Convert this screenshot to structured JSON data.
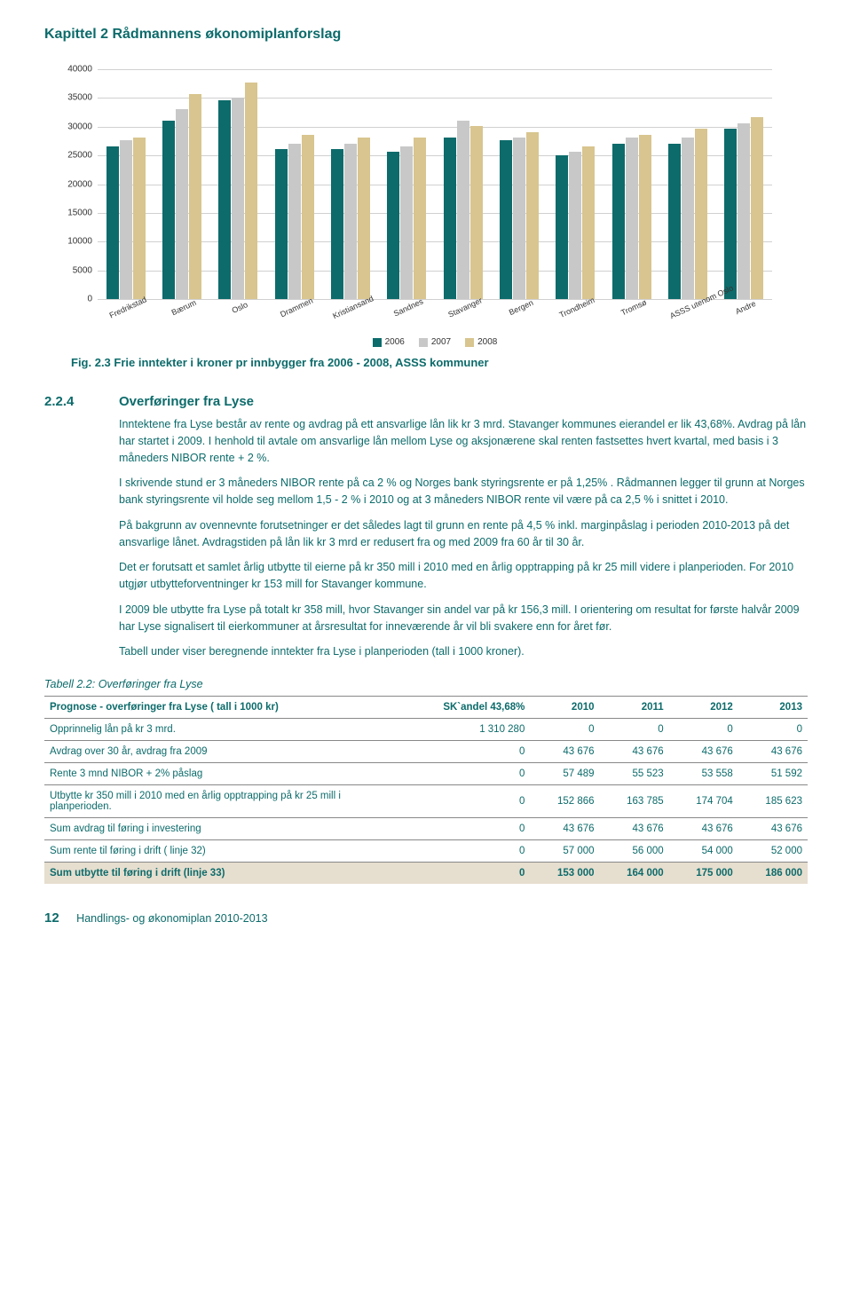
{
  "chapter_title": "Kapittel 2 Rådmannens økonomiplanforslag",
  "chart": {
    "type": "bar",
    "ylim": [
      0,
      40000
    ],
    "ytick_step": 5000,
    "yticks": [
      0,
      5000,
      10000,
      15000,
      20000,
      25000,
      30000,
      35000,
      40000
    ],
    "categories": [
      "Fredrikstad",
      "Bærum",
      "Oslo",
      "Drammen",
      "Kristiansand",
      "Sandnes",
      "Stavanger",
      "Bergen",
      "Trondheim",
      "Tromsø",
      "ASSS utenom Oslo",
      "Andre"
    ],
    "series": [
      {
        "name": "2006",
        "color": "#0d6b6b",
        "values": [
          26500,
          31000,
          34500,
          26000,
          26000,
          25500,
          28000,
          27500,
          25000,
          27000,
          27000,
          29500
        ]
      },
      {
        "name": "2007",
        "color": "#c8c8c8",
        "values": [
          27500,
          33000,
          35000,
          27000,
          27000,
          26500,
          31000,
          28000,
          25500,
          28000,
          28000,
          30500
        ]
      },
      {
        "name": "2008",
        "color": "#d8c58f",
        "values": [
          28000,
          35500,
          37500,
          28500,
          28000,
          28000,
          30000,
          29000,
          26500,
          28500,
          29500,
          31500
        ]
      }
    ],
    "grid_color": "#d0d0d0",
    "axis_font_size": 10
  },
  "fig_caption": "Fig. 2.3 Frie inntekter i kroner pr innbygger fra 2006 - 2008, ASSS kommuner",
  "section": {
    "number": "2.2.4",
    "title": "Overføringer fra Lyse",
    "paragraphs": [
      "Inntektene fra Lyse består av rente og avdrag på ett ansvarlige lån lik kr 3 mrd. Stavanger kommunes eierandel er lik 43,68%. Avdrag på lån har startet i 2009. I henhold til avtale om ansvarlige lån mellom Lyse og aksjonærene skal renten fastsettes hvert kvartal, med basis i 3 måneders NIBOR rente + 2 %.",
      "I skrivende stund er 3 måneders NIBOR rente på ca 2 % og Norges bank styringsrente er på 1,25% . Rådmannen legger til grunn at Norges bank styringsrente vil holde seg mellom 1,5 - 2 % i 2010 og at 3 måneders NIBOR rente vil være på ca 2,5 % i snittet i 2010.",
      "På bakgrunn av ovennevnte forutsetninger er det således lagt til grunn en rente på 4,5 % inkl. marginpåslag i perioden 2010-2013 på det ansvarlige lånet. Avdragstiden på lån lik kr 3 mrd er redusert fra og med 2009 fra 60 år til 30 år.",
      "Det er forutsatt et samlet årlig utbytte til eierne på kr 350 mill i 2010 med en årlig opptrapping på kr 25 mill videre i planperioden. For 2010 utgjør utbytteforventninger kr 153 mill for Stavanger kommune.",
      "I 2009 ble utbytte fra Lyse på totalt kr 358 mill, hvor Stavanger sin andel var på kr 156,3 mill. I orientering om resultat for første halvår 2009 har Lyse signalisert til eierkommuner at årsresultat for inneværende år vil bli svakere enn for året før.",
      "Tabell under viser beregnende inntekter fra Lyse i planperioden (tall i 1000 kroner)."
    ]
  },
  "table_caption": "Tabell 2.2: Overføringer fra Lyse",
  "table": {
    "header_row": [
      "Prognose - overføringer fra Lyse ( tall i 1000 kr)",
      "SK`andel 43,68%",
      "2010",
      "2011",
      "2012",
      "2013"
    ],
    "rows": [
      {
        "cells": [
          "Opprinnelig lån på kr 3 mrd.",
          "1 310 280",
          "0",
          "0",
          "0",
          "0"
        ],
        "hl": false
      },
      {
        "cells": [
          "Avdrag over 30 år, avdrag fra 2009",
          "0",
          "43 676",
          "43 676",
          "43 676",
          "43 676"
        ],
        "hl": false
      },
      {
        "cells": [
          "Rente 3 mnd NIBOR + 2% påslag",
          "0",
          "57 489",
          "55 523",
          "53 558",
          "51 592"
        ],
        "hl": false
      },
      {
        "cells": [
          "Utbytte kr 350 mill i 2010 med en årlig opptrapping på kr 25 mill i planperioden.",
          "0",
          "152 866",
          "163 785",
          "174 704",
          "185 623"
        ],
        "hl": false
      },
      {
        "cells": [
          "Sum avdrag til føring i investering",
          "0",
          "43 676",
          "43 676",
          "43 676",
          "43 676"
        ],
        "hl": false
      },
      {
        "cells": [
          "Sum rente til føring i drift ( linje 32)",
          "0",
          "57 000",
          "56 000",
          "54 000",
          "52 000"
        ],
        "hl": false
      },
      {
        "cells": [
          "Sum utbytte til føring i drift (linje 33)",
          "0",
          "153 000",
          "164 000",
          "175 000",
          "186 000"
        ],
        "hl": true
      }
    ]
  },
  "footer": {
    "page": "12",
    "doc": "Handlings- og økonomiplan 2010-2013"
  }
}
